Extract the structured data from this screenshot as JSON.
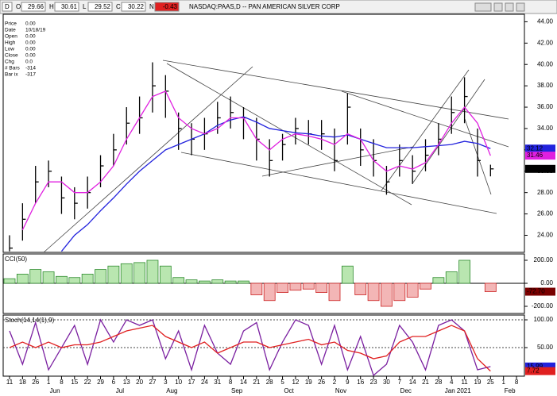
{
  "header": {
    "interval": "D",
    "fields": [
      {
        "key": "O",
        "value": "29.66"
      },
      {
        "key": "H",
        "value": "30.61"
      },
      {
        "key": "L",
        "value": "29.52"
      },
      {
        "key": "C",
        "value": "30.22"
      },
      {
        "key": "N",
        "value": "-0.43"
      }
    ],
    "title": "NASDAQ:PAAS,D -- PAN AMERICAN SILVER CORP"
  },
  "info": [
    [
      "Price",
      "0.00"
    ],
    [
      "Date",
      "10/18/19"
    ],
    [
      "Open",
      "0.00"
    ],
    [
      "High",
      "0.00"
    ],
    [
      "Low",
      "0.00"
    ],
    [
      "Close",
      "0.00"
    ],
    [
      "Chg",
      "0.0"
    ],
    [
      "# Bars",
      "-314"
    ],
    [
      "Bar ix",
      "-317"
    ]
  ],
  "x_axis": {
    "days": [
      "11",
      "18",
      "26",
      "1",
      "8",
      "15",
      "22",
      "29",
      "6",
      "13",
      "20",
      "27",
      "3",
      "10",
      "17",
      "24",
      "31",
      "8",
      "14",
      "21",
      "28",
      "5",
      "12",
      "19",
      "26",
      "2",
      "9",
      "16",
      "23",
      "30",
      "7",
      "14",
      "21",
      "28",
      "4",
      "11",
      "19",
      "25",
      "1",
      "8"
    ],
    "months": [
      "Jun",
      "Jul",
      "Aug",
      "Sep",
      "Oct",
      "Nov",
      "Dec",
      "Jan 2021",
      "Feb"
    ]
  },
  "chart_data": [
    {
      "type": "ohlc",
      "close": [
        22.8,
        25.5,
        29,
        30,
        27.5,
        27,
        28,
        30.5,
        32,
        34.5,
        35,
        38,
        37.5,
        34,
        33,
        33.5,
        35,
        35.5,
        35,
        33,
        31,
        32.5,
        34,
        33.5,
        33.5,
        31,
        36,
        32,
        31,
        29,
        31,
        30,
        31.5,
        33,
        35.5,
        37,
        31,
        30.22
      ],
      "high": [
        24,
        27,
        30.5,
        31,
        29.5,
        28.5,
        29.5,
        31.5,
        33.5,
        36,
        37,
        40.2,
        39,
        35.5,
        34.5,
        35,
        36.5,
        37,
        36,
        35,
        33,
        33.5,
        35,
        34.8,
        34.8,
        34,
        37.3,
        34,
        33,
        30.5,
        32.5,
        31.5,
        33,
        34.5,
        37,
        38.8,
        34,
        30.61
      ],
      "low": [
        22.5,
        23.5,
        27,
        28.5,
        26,
        25.5,
        26.5,
        28.5,
        30.5,
        32.5,
        33.5,
        35.5,
        35,
        32,
        31.5,
        32,
        33.5,
        34,
        33,
        31,
        29.5,
        31,
        32.5,
        32.5,
        32,
        30,
        32.5,
        30.5,
        29.5,
        27.8,
        29.5,
        28.8,
        30,
        31.5,
        33.5,
        34.5,
        29.5,
        29.52
      ],
      "color": "#000000",
      "series": [
        {
          "color": "#2222dd",
          "values": [
            null,
            null,
            null,
            null,
            22.5,
            24,
            25,
            26.3,
            27.5,
            28.8,
            30,
            31,
            32,
            32.5,
            33,
            33.5,
            34.3,
            34.8,
            35.1,
            34.6,
            34,
            33.8,
            33.6,
            33.5,
            33.3,
            33.2,
            33.4,
            33,
            32.6,
            32.2,
            32.2,
            32.2,
            32.3,
            32.4,
            32.5,
            32.8,
            32.6,
            32.12
          ],
          "last_label": "32.12"
        },
        {
          "color": "#e020e0",
          "values": [
            null,
            24.5,
            27,
            29,
            29,
            28,
            28,
            29,
            30.5,
            33,
            35,
            37,
            37.5,
            35,
            34,
            33.5,
            34,
            35,
            35,
            33,
            32,
            33,
            33.5,
            33.3,
            33,
            32.5,
            33.5,
            33,
            31,
            30,
            30.5,
            30.2,
            30.8,
            32.5,
            34.5,
            36,
            34.5,
            31.46
          ],
          "last_label": "31.46"
        }
      ],
      "last_label": "30.22",
      "ylim": [
        22.4,
        44.7
      ],
      "yticks": [
        {
          "value": 24,
          "label": "24.00"
        },
        {
          "value": 26,
          "label": "26.00"
        },
        {
          "value": 28,
          "label": "28.00"
        },
        {
          "value": 30,
          "label": "30.00"
        },
        {
          "value": 32,
          "label": "32.00"
        },
        {
          "value": 34,
          "label": "34.00"
        },
        {
          "value": 36,
          "label": "36.00"
        },
        {
          "value": 38,
          "label": "38.00"
        },
        {
          "value": 40,
          "label": "40.00"
        },
        {
          "value": 42,
          "label": "42.00"
        },
        {
          "value": 44,
          "label": "44.00"
        }
      ]
    },
    {
      "type": "histogram",
      "title": "CCI(50)",
      "values": [
        40,
        80,
        120,
        100,
        60,
        50,
        80,
        120,
        150,
        170,
        180,
        200,
        150,
        50,
        30,
        20,
        30,
        20,
        20,
        -100,
        -150,
        -80,
        -60,
        -50,
        -80,
        -150,
        150,
        -100,
        -150,
        -200,
        -150,
        -120,
        -50,
        50,
        100,
        200,
        0,
        -72.7
      ],
      "last_label": "-72.70",
      "pos_color": "#2e8b2e",
      "neg_color": "#cc2222",
      "ylim": [
        -262,
        255
      ],
      "yticks": [
        {
          "value": 200,
          "label": "200.00"
        },
        {
          "value": 0,
          "label": "0.00"
        },
        {
          "value": -200,
          "label": "-200.00"
        }
      ]
    },
    {
      "type": "line",
      "title": "Stoch(14,14(1),9)",
      "series": [
        {
          "color": "#7a1fa0",
          "values": [
            80,
            20,
            95,
            10,
            50,
            90,
            20,
            100,
            60,
            100,
            90,
            100,
            30,
            80,
            10,
            90,
            40,
            20,
            80,
            95,
            10,
            60,
            100,
            90,
            20,
            90,
            10,
            70,
            0,
            20,
            90,
            60,
            10,
            90,
            100,
            80,
            10,
            15.99
          ],
          "last_label": "15.99",
          "badge": "#2222dd"
        },
        {
          "color": "#e02020",
          "values": [
            50,
            60,
            50,
            60,
            50,
            55,
            55,
            60,
            70,
            80,
            85,
            90,
            70,
            60,
            50,
            60,
            40,
            50,
            60,
            60,
            50,
            55,
            60,
            65,
            55,
            60,
            45,
            40,
            30,
            35,
            60,
            70,
            70,
            80,
            90,
            80,
            30,
            7.72
          ],
          "last_label": "7.72",
          "badge": "#e02020"
        }
      ],
      "ylim": [
        -1.4,
        108.6
      ],
      "yticks": [
        {
          "value": 100,
          "label": "100.00"
        },
        {
          "value": 50,
          "label": "50.00"
        }
      ],
      "grid": true
    }
  ]
}
